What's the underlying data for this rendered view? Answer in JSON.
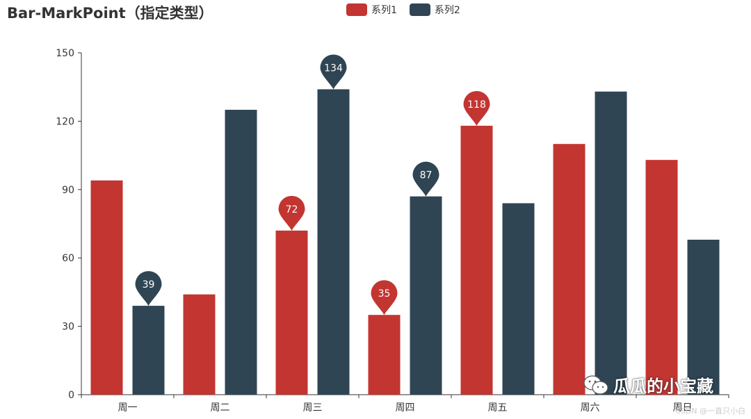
{
  "chart_data": {
    "type": "bar",
    "title": "Bar-MarkPoint（指定类型）",
    "categories": [
      "周一",
      "周二",
      "周三",
      "周四",
      "周五",
      "周六",
      "周日"
    ],
    "ylim": [
      0,
      150
    ],
    "yticks": [
      0,
      30,
      60,
      90,
      120,
      150
    ],
    "grid": false,
    "legend_position": "top-center",
    "series": [
      {
        "name": "系列1",
        "color": "#c23531",
        "values": [
          94,
          44,
          72,
          35,
          118,
          110,
          103
        ]
      },
      {
        "name": "系列2",
        "color": "#2f4554",
        "values": [
          39,
          125,
          134,
          87,
          84,
          133,
          68
        ]
      }
    ],
    "mark_points": [
      {
        "series": 0,
        "category": "周三",
        "value": 72
      },
      {
        "series": 0,
        "category": "周四",
        "value": 35
      },
      {
        "series": 0,
        "category": "周五",
        "value": 118
      },
      {
        "series": 1,
        "category": "周一",
        "value": 39
      },
      {
        "series": 1,
        "category": "周三",
        "value": 134
      },
      {
        "series": 1,
        "category": "周四",
        "value": 87
      }
    ]
  },
  "watermark": {
    "text": "瓜瓜的小宝藏",
    "icon": "wechat-icon"
  },
  "credit": "CSDN @一直只小白"
}
